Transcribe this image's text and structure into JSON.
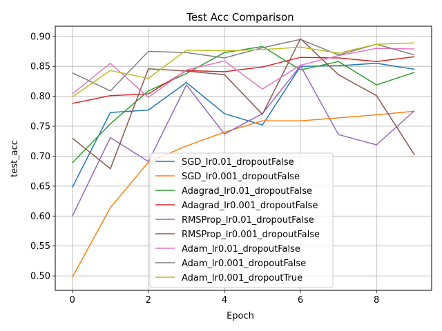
{
  "chart_data": {
    "type": "line",
    "title": "Test Acc Comparison",
    "xlabel": "Epoch",
    "ylabel": "test_acc",
    "x": [
      0,
      1,
      2,
      3,
      4,
      5,
      6,
      7,
      8,
      9
    ],
    "xlim": [
      -0.45,
      9.45
    ],
    "ylim": [
      0.476,
      0.917
    ],
    "xticks": [
      0,
      2,
      4,
      6,
      8
    ],
    "yticks": [
      0.5,
      0.55,
      0.6,
      0.65,
      0.7,
      0.75,
      0.8,
      0.85,
      0.9
    ],
    "ytick_labels": [
      "0.50",
      "0.55",
      "0.60",
      "0.65",
      "0.70",
      "0.75",
      "0.80",
      "0.85",
      "0.90"
    ],
    "grid": true,
    "legend_position": "lower-center",
    "series": [
      {
        "name": "SGD_lr0.01_dropoutFalse",
        "color": "#1f77b4",
        "values": [
          0.648,
          0.773,
          0.777,
          0.823,
          0.771,
          0.752,
          0.85,
          0.851,
          0.855,
          0.845
        ]
      },
      {
        "name": "SGD_lr0.001_dropoutFalse",
        "color": "#ff7f0e",
        "values": [
          0.498,
          0.614,
          0.69,
          0.717,
          0.74,
          0.759,
          0.759,
          0.764,
          0.769,
          0.775
        ]
      },
      {
        "name": "Adagrad_lr0.01_dropoutFalse",
        "color": "#2ca02c",
        "values": [
          0.689,
          0.754,
          0.809,
          0.838,
          0.873,
          0.883,
          0.844,
          0.858,
          0.819,
          0.84
        ]
      },
      {
        "name": "Adagrad_lr0.001_dropoutFalse",
        "color": "#d62728",
        "values": [
          0.788,
          0.801,
          0.804,
          0.843,
          0.841,
          0.849,
          0.865,
          0.864,
          0.858,
          0.866
        ]
      },
      {
        "name": "RMSProp_lr0.01_dropoutFalse",
        "color": "#9467bd",
        "values": [
          0.6,
          0.731,
          0.691,
          0.819,
          0.737,
          0.771,
          0.851,
          0.736,
          0.719,
          0.776
        ]
      },
      {
        "name": "RMSProp_lr0.001_dropoutFalse",
        "color": "#8c564b",
        "values": [
          0.73,
          0.679,
          0.846,
          0.842,
          0.836,
          0.77,
          0.896,
          0.836,
          0.801,
          0.702
        ]
      },
      {
        "name": "Adam_lr0.01_dropoutFalse",
        "color": "#e377c2",
        "values": [
          0.804,
          0.855,
          0.798,
          0.844,
          0.859,
          0.812,
          0.852,
          0.868,
          0.88,
          0.879
        ]
      },
      {
        "name": "Adam_lr0.001_dropoutFalse",
        "color": "#7f7f7f",
        "values": [
          0.839,
          0.809,
          0.875,
          0.873,
          0.864,
          0.881,
          0.895,
          0.869,
          0.887,
          0.869
        ]
      },
      {
        "name": "Adam_lr0.001_dropoutTrue",
        "color": "#bcbd22",
        "values": [
          0.799,
          0.843,
          0.83,
          0.877,
          0.876,
          0.878,
          0.882,
          0.872,
          0.887,
          0.889
        ]
      }
    ]
  }
}
